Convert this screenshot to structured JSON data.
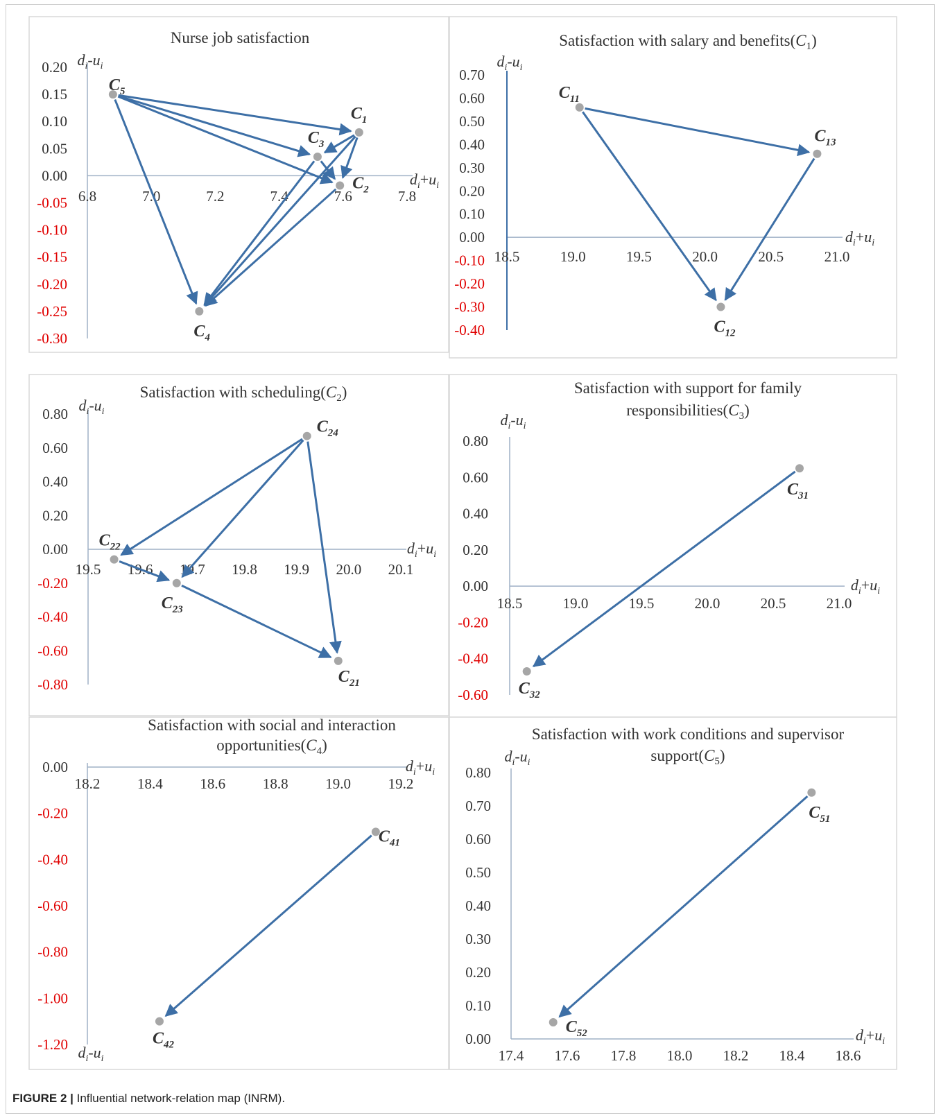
{
  "caption": {
    "label": "FIGURE 2 |",
    "text": "Influential network-relation map (INRM)."
  },
  "colors": {
    "arrow": "#3d6fa6",
    "point": "#a6a6a6",
    "axis": "#9fb1c6",
    "negative_tick": "#e00000",
    "text": "#333333"
  },
  "chart_data": [
    {
      "type": "scatter",
      "title": "Nurse job satisfaction",
      "xlabel": "d_i+u_i",
      "ylabel": "d_i-u_i",
      "xlim": [
        6.8,
        7.8
      ],
      "ylim": [
        -0.3,
        0.2
      ],
      "xticks": [
        "6.8",
        "7.0",
        "7.2",
        "7.4",
        "7.6",
        "7.8"
      ],
      "yticks": [
        "0.20",
        "0.15",
        "0.10",
        "0.05",
        "0.00",
        "-0.05",
        "-0.10",
        "-0.15",
        "-0.20",
        "-0.25",
        "-0.30"
      ],
      "points": [
        {
          "label": "C",
          "sub": "5",
          "x": 6.88,
          "y": 0.15
        },
        {
          "label": "C",
          "sub": "1",
          "x": 7.65,
          "y": 0.08
        },
        {
          "label": "C",
          "sub": "3",
          "x": 7.52,
          "y": 0.035
        },
        {
          "label": "C",
          "sub": "2",
          "x": 7.59,
          "y": -0.018
        },
        {
          "label": "C",
          "sub": "4",
          "x": 7.15,
          "y": -0.25
        }
      ],
      "arrows": [
        [
          "C5",
          "C1"
        ],
        [
          "C5",
          "C3"
        ],
        [
          "C5",
          "C2"
        ],
        [
          "C5",
          "C4"
        ],
        [
          "C1",
          "C3"
        ],
        [
          "C1",
          "C2"
        ],
        [
          "C1",
          "C4"
        ],
        [
          "C3",
          "C2"
        ],
        [
          "C3",
          "C4"
        ],
        [
          "C2",
          "C4"
        ]
      ]
    },
    {
      "type": "scatter",
      "title": "Satisfaction with salary and benefits(C1)",
      "xlabel": "d_i+u_i",
      "ylabel": "d_i-u_i",
      "xlim": [
        18.5,
        21.0
      ],
      "ylim": [
        -0.4,
        0.7
      ],
      "xticks": [
        "18.5",
        "19.0",
        "19.5",
        "20.0",
        "20.5",
        "21.0"
      ],
      "yticks": [
        "0.70",
        "0.60",
        "0.50",
        "0.40",
        "0.30",
        "0.20",
        "0.10",
        "0.00",
        "-0.10",
        "-0.20",
        "-0.30",
        "-0.40"
      ],
      "points": [
        {
          "label": "C",
          "sub": "11",
          "x": 19.05,
          "y": 0.56
        },
        {
          "label": "C",
          "sub": "13",
          "x": 20.85,
          "y": 0.36
        },
        {
          "label": "C",
          "sub": "12",
          "x": 20.12,
          "y": -0.3
        }
      ],
      "arrows": [
        [
          "C11",
          "C13"
        ],
        [
          "C11",
          "C12"
        ],
        [
          "C13",
          "C12"
        ]
      ]
    },
    {
      "type": "scatter",
      "title": "Satisfaction with scheduling(C2)",
      "xlabel": "d_i+u_i",
      "ylabel": "d_i-u_i",
      "xlim": [
        19.5,
        20.1
      ],
      "ylim": [
        -0.8,
        0.8
      ],
      "xticks": [
        "19.5",
        "19.6",
        "19.7",
        "19.8",
        "19.9",
        "20.0",
        "20.1"
      ],
      "yticks": [
        "0.80",
        "0.60",
        "0.40",
        "0.20",
        "0.00",
        "-0.20",
        "-0.40",
        "-0.60",
        "-0.80"
      ],
      "points": [
        {
          "label": "C",
          "sub": "24",
          "x": 19.92,
          "y": 0.67
        },
        {
          "label": "C",
          "sub": "22",
          "x": 19.55,
          "y": -0.06
        },
        {
          "label": "C",
          "sub": "23",
          "x": 19.67,
          "y": -0.2
        },
        {
          "label": "C",
          "sub": "21",
          "x": 19.98,
          "y": -0.66
        }
      ],
      "arrows": [
        [
          "C24",
          "C22"
        ],
        [
          "C24",
          "C23"
        ],
        [
          "C24",
          "C21"
        ],
        [
          "C22",
          "C23"
        ],
        [
          "C23",
          "C21"
        ]
      ]
    },
    {
      "type": "scatter",
      "title": "Satisfaction with support for family responsibilities(C3)",
      "xlabel": "d_i+u_i",
      "ylabel": "d_i-u_i",
      "xlim": [
        18.5,
        21.0
      ],
      "ylim": [
        -0.6,
        0.8
      ],
      "xticks": [
        "18.5",
        "19.0",
        "19.5",
        "20.0",
        "20.5",
        "21.0"
      ],
      "yticks": [
        "0.80",
        "0.60",
        "0.40",
        "0.20",
        "0.00",
        "-0.20",
        "-0.40",
        "-0.60"
      ],
      "points": [
        {
          "label": "C",
          "sub": "31",
          "x": 20.7,
          "y": 0.65
        },
        {
          "label": "C",
          "sub": "32",
          "x": 18.63,
          "y": -0.47
        }
      ],
      "arrows": [
        [
          "C31",
          "C32"
        ]
      ]
    },
    {
      "type": "scatter",
      "title": "Satisfaction with social and interaction opportunities(C4)",
      "xlabel": "d_i+u_i",
      "ylabel": "d_i-u_i",
      "xlim": [
        18.2,
        19.2
      ],
      "ylim": [
        -1.2,
        0.0
      ],
      "xticks": [
        "18.2",
        "18.4",
        "18.6",
        "18.8",
        "19.0",
        "19.2"
      ],
      "yticks": [
        "0.00",
        "-0.20",
        "-0.40",
        "-0.60",
        "-0.80",
        "-1.00",
        "-1.20"
      ],
      "points": [
        {
          "label": "C",
          "sub": "41",
          "x": 19.12,
          "y": -0.28
        },
        {
          "label": "C",
          "sub": "42",
          "x": 18.43,
          "y": -1.1
        }
      ],
      "arrows": [
        [
          "C41",
          "C42"
        ]
      ]
    },
    {
      "type": "scatter",
      "title": "Satisfaction with work conditions and supervisor support(C5)",
      "xlabel": "d_i+u_i",
      "ylabel": "d_i-u_i",
      "xlim": [
        17.4,
        18.6
      ],
      "ylim": [
        0.0,
        0.8
      ],
      "xticks": [
        "17.4",
        "17.6",
        "17.8",
        "18.0",
        "18.2",
        "18.4",
        "18.6"
      ],
      "yticks": [
        "0.80",
        "0.70",
        "0.60",
        "0.50",
        "0.40",
        "0.30",
        "0.20",
        "0.10",
        "0.00"
      ],
      "points": [
        {
          "label": "C",
          "sub": "51",
          "x": 18.47,
          "y": 0.74
        },
        {
          "label": "C",
          "sub": "52",
          "x": 17.55,
          "y": 0.05
        }
      ],
      "arrows": [
        [
          "C51",
          "C52"
        ]
      ]
    }
  ]
}
